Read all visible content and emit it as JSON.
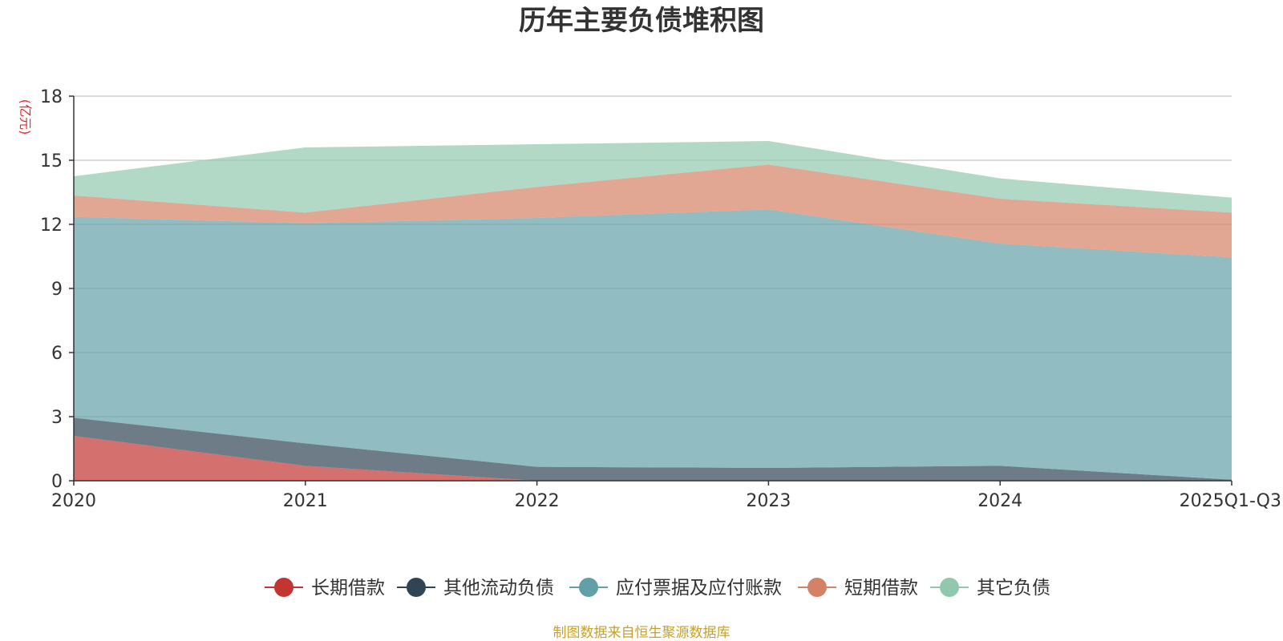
{
  "chart_data": {
    "type": "area",
    "stacked": true,
    "title": "历年主要负债堆积图",
    "ylabel": "(亿元)",
    "xlabel": "",
    "ylim": [
      0,
      18
    ],
    "yticks": [
      0,
      3,
      6,
      9,
      12,
      15,
      18
    ],
    "grid": true,
    "legend_position": "bottom",
    "categories": [
      "2020",
      "2021",
      "2022",
      "2023",
      "2024",
      "2025Q1-Q3"
    ],
    "series": [
      {
        "name": "长期借款",
        "color": "#c23531",
        "values": [
          2.1,
          0.7,
          0.0,
          0.0,
          0.0,
          0.0
        ]
      },
      {
        "name": "其他流动负债",
        "color": "#2f4554",
        "values": [
          0.85,
          1.05,
          0.65,
          0.6,
          0.7,
          0.05
        ]
      },
      {
        "name": "应付票据及应付账款",
        "color": "#61a0a8",
        "values": [
          9.4,
          10.3,
          11.65,
          12.1,
          10.4,
          10.4
        ]
      },
      {
        "name": "短期借款",
        "color": "#d48265",
        "values": [
          1.0,
          0.5,
          1.45,
          2.1,
          2.1,
          2.1
        ]
      },
      {
        "name": "其它负债",
        "color": "#91c7ae",
        "values": [
          0.9,
          3.05,
          2.0,
          1.1,
          0.95,
          0.7
        ]
      }
    ],
    "source": "制图数据来自恒生聚源数据库"
  }
}
